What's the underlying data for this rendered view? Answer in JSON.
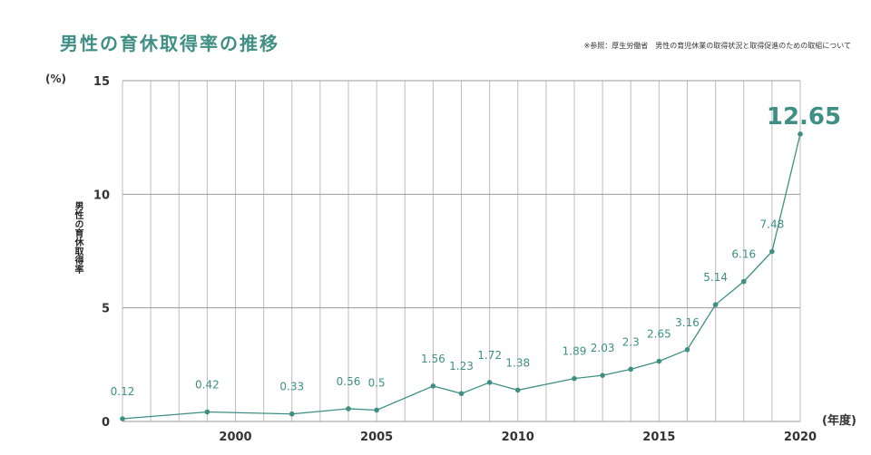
{
  "chart_data": {
    "type": "line",
    "title": "男性の育休取得率の推移",
    "source": "※参照：厚生労働省　男性の育児休業の取得状況と取得促進のための取組について",
    "xlabel": "(年度)",
    "ylabel": "男性の育休取得率",
    "yunit": "(%)",
    "xlim": [
      1996,
      2020
    ],
    "ylim": [
      0,
      15
    ],
    "yticks": [
      "0",
      "5",
      "10",
      "15"
    ],
    "xticks": [
      "2000",
      "2005",
      "2010",
      "2015",
      "2020"
    ],
    "series": [
      {
        "name": "男性の育休取得率",
        "color": "#3f8f84",
        "points": [
          {
            "x": 1996,
            "y": 0.12,
            "label": "0.12"
          },
          {
            "x": 1999,
            "y": 0.42,
            "label": "0.42"
          },
          {
            "x": 2002,
            "y": 0.33,
            "label": "0.33"
          },
          {
            "x": 2004,
            "y": 0.56,
            "label": "0.56"
          },
          {
            "x": 2005,
            "y": 0.5,
            "label": "0.5"
          },
          {
            "x": 2007,
            "y": 1.56,
            "label": "1.56"
          },
          {
            "x": 2008,
            "y": 1.23,
            "label": "1.23"
          },
          {
            "x": 2009,
            "y": 1.72,
            "label": "1.72"
          },
          {
            "x": 2010,
            "y": 1.38,
            "label": "1.38"
          },
          {
            "x": 2012,
            "y": 1.89,
            "label": "1.89"
          },
          {
            "x": 2013,
            "y": 2.03,
            "label": "2.03"
          },
          {
            "x": 2014,
            "y": 2.3,
            "label": "2.3"
          },
          {
            "x": 2015,
            "y": 2.65,
            "label": "2.65"
          },
          {
            "x": 2016,
            "y": 3.16,
            "label": "3.16"
          },
          {
            "x": 2017,
            "y": 5.14,
            "label": "5.14"
          },
          {
            "x": 2018,
            "y": 6.16,
            "label": "6.16"
          },
          {
            "x": 2019,
            "y": 7.48,
            "label": "7.48"
          },
          {
            "x": 2020,
            "y": 12.65,
            "label": "12.65"
          }
        ]
      }
    ]
  }
}
